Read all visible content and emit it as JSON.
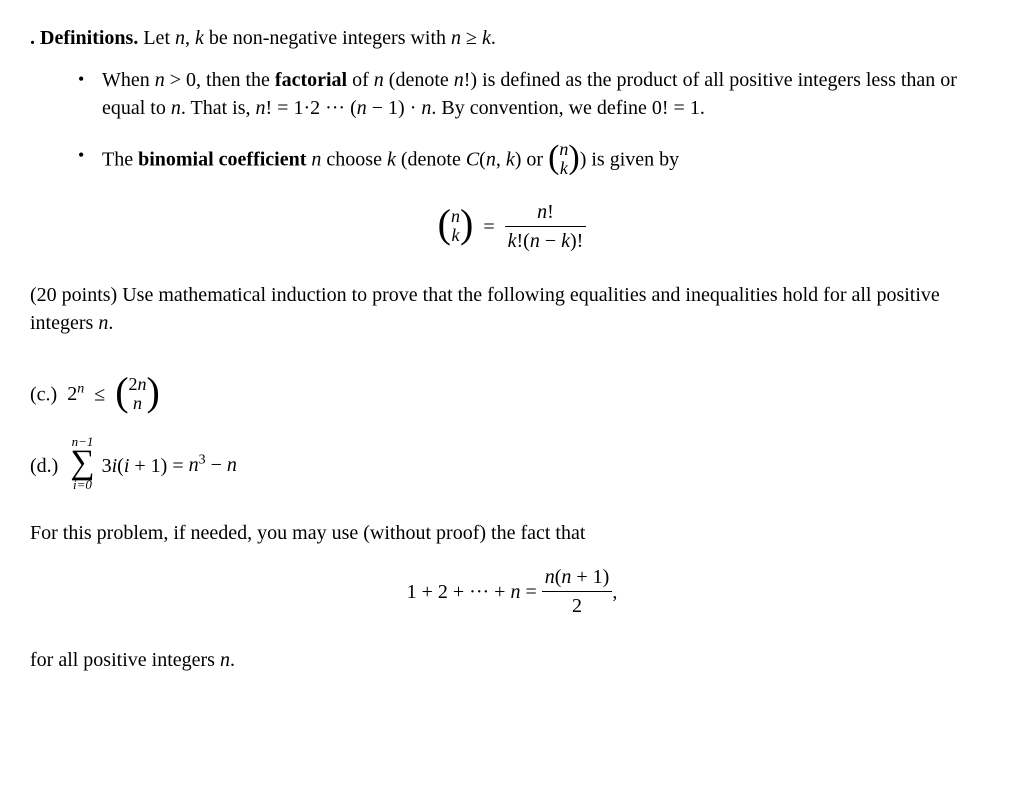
{
  "typography": {
    "font_family": "Times New Roman",
    "base_fontsize_pt": 15,
    "text_color": "#000000",
    "background_color": "#ffffff"
  },
  "definitions": {
    "heading": ". Definitions.",
    "intro": " Let n, k be non-negative integers with n ≥ k.",
    "bullets": [
      {
        "lead": "When n > 0, then the ",
        "bold_term": "factorial",
        "after_bold": " of n (denote n!) is defined as the product of all positive integers less than or equal to n. That is, n! = 1·2 ··· (n − 1) · n. By convention, we define 0! = 1."
      },
      {
        "lead": "The ",
        "bold_term": "binomial coefficient",
        "after_bold": " n choose k (denote C(n, k) or ",
        "tail": ") is given by"
      }
    ]
  },
  "equation_binom": {
    "top": "n",
    "bottom": "k",
    "rhs_num": "n!",
    "rhs_den": "k!(n − k)!"
  },
  "points_line": "(20 points) Use mathematical induction to prove that the following equalities and inequalities hold for all positive integers n.",
  "parts": {
    "c": {
      "label": "(c.)",
      "lhs_base": "2",
      "lhs_exp": "n",
      "rel": "≤",
      "binom_top": "2n",
      "binom_bottom": "n"
    },
    "d": {
      "label": "(d.)",
      "sum_top": "n−1",
      "sum_bot": "i=0",
      "summand": "3i(i + 1)",
      "eq": " = ",
      "rhs": "n³ − n"
    }
  },
  "hint_line": "For this problem, if needed, you may use (without proof) the fact that",
  "equation_sum": {
    "lhs": "1 + 2 + ··· + n = ",
    "frac_num": "n(n + 1)",
    "frac_den": "2",
    "trail": ","
  },
  "for_all": "for all positive integers n."
}
